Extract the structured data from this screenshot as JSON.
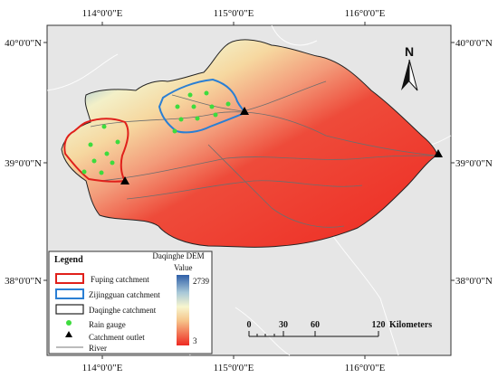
{
  "map": {
    "top_labels": [
      "114°0'0\"E",
      "115°0'0\"E",
      "116°0'0\"E"
    ],
    "bottom_labels": [
      "114°0'0\"E",
      "115°0'0\"E",
      "116°0'0\"E"
    ],
    "left_labels": [
      "40°0'0\"N",
      "39°0'0\"N",
      "38°0'0\"N"
    ],
    "right_labels": [
      "40°0'0\"N",
      "39°0'0\"N",
      "38°0'0\"N"
    ],
    "north_label": "N",
    "colors": {
      "background": "#e6e6e6",
      "fuping": "#e0201b",
      "zijingguan": "#2a7fd4",
      "daqinghe": "#222222",
      "rain_gauge": "#3ddc3d",
      "outlet": "#000000",
      "river": "#7a7a7a"
    }
  },
  "legend": {
    "title": "Legend",
    "items": [
      {
        "label": "Fuping catchment",
        "icon": "red-box"
      },
      {
        "label": "Zijingguan catchment",
        "icon": "blue-box"
      },
      {
        "label": "Daqinghe catchment",
        "icon": "black-box"
      },
      {
        "label": "Rain gauge",
        "icon": "green-dot"
      },
      {
        "label": "Catchment outlet",
        "icon": "black-triangle"
      },
      {
        "label": "River",
        "icon": "gray-line"
      }
    ],
    "dem_title_1": "Daqinghe DEM",
    "dem_title_2": "Value",
    "dem_max": "2739",
    "dem_min": "3"
  },
  "scale_bar": {
    "ticks": [
      "0",
      "30",
      "60",
      "120"
    ],
    "unit": "Kilometers"
  }
}
